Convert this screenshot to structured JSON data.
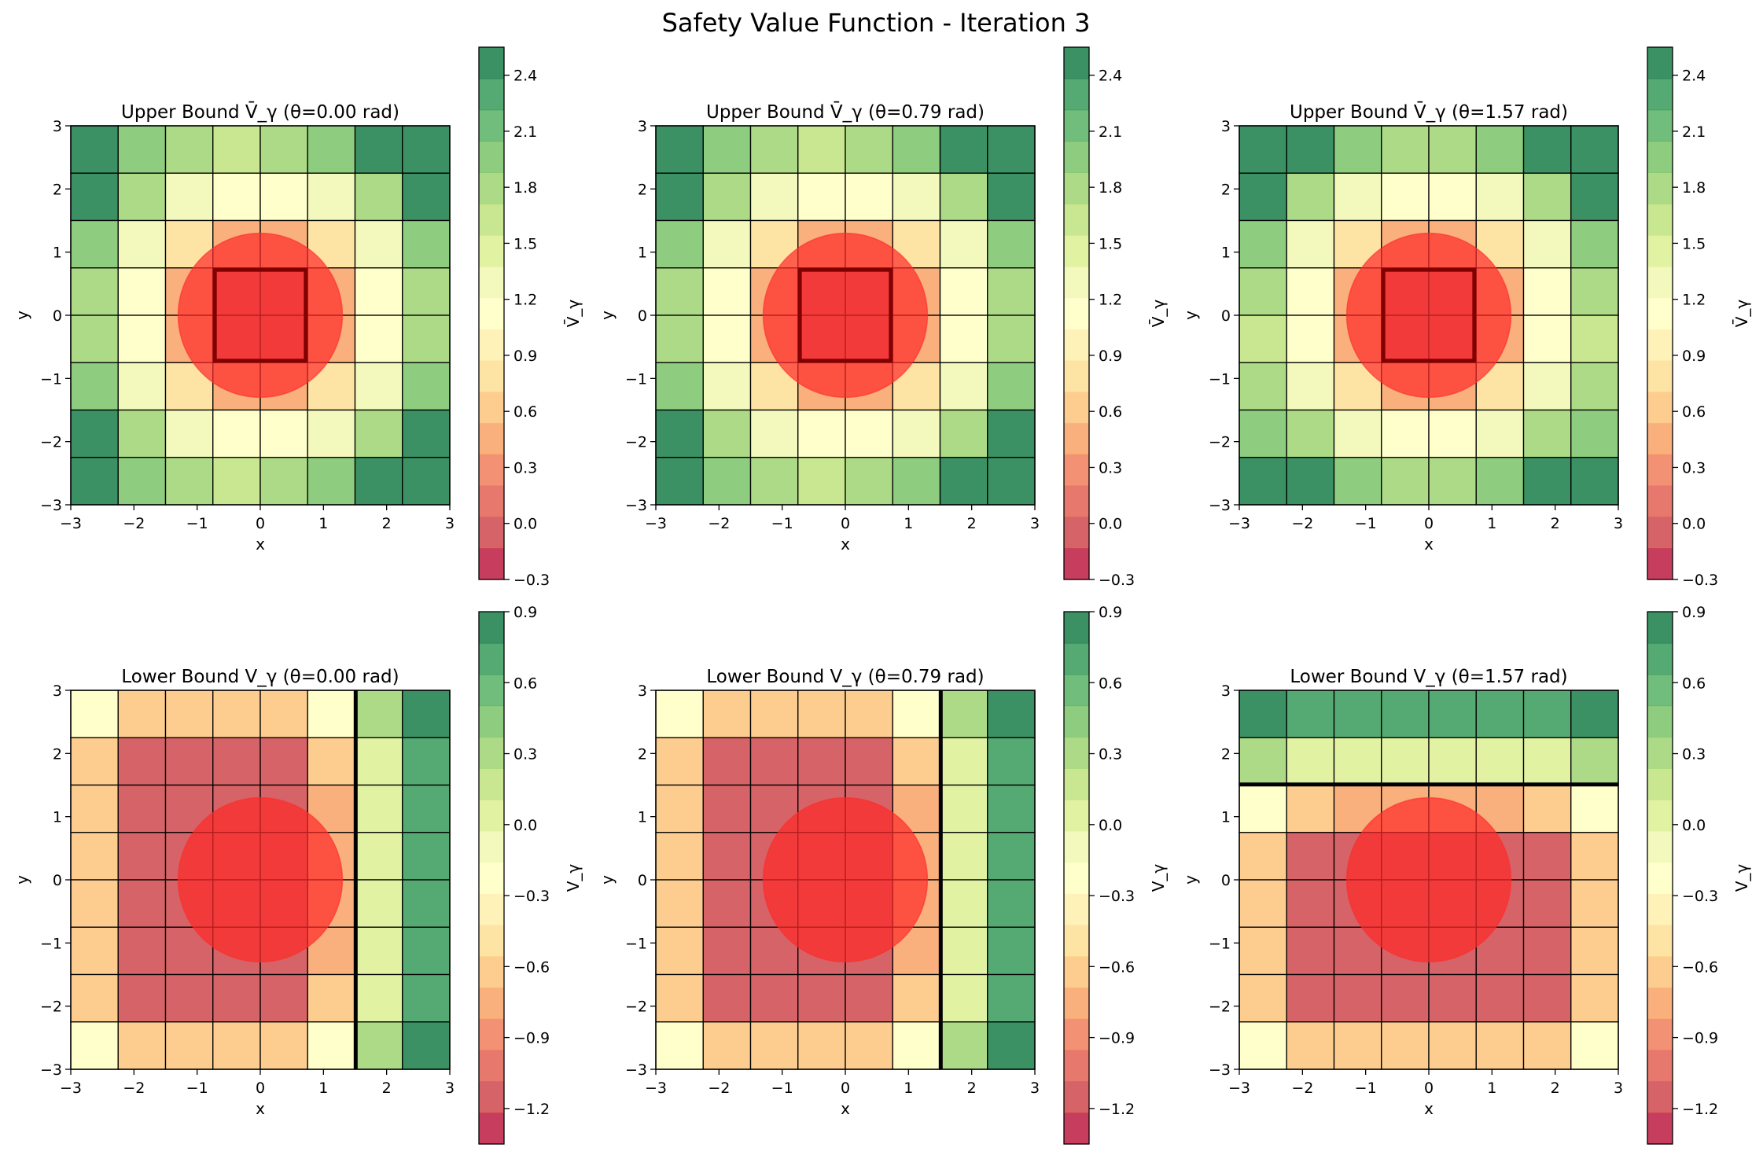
{
  "figure": {
    "title": "Safety Value Function - Iteration 3"
  },
  "colors": {
    "palette": [
      "#b90c36",
      "#cc3c41",
      "#e1564a",
      "#ef7650",
      "#f89c5b",
      "#fdc074",
      "#fedd8d",
      "#feefa7",
      "#ffffbf",
      "#f0f8ad",
      "#d9ef8b",
      "#bbe176",
      "#99d168",
      "#72c05f",
      "#4dad5b",
      "#2b944f",
      "#0a763c"
    ],
    "obstacle": "#ff2a2a",
    "upper_boundary": "#800000",
    "lower_boundary": "#000000"
  },
  "chart_data": [
    {
      "type": "heatmap",
      "title": "Upper Bound V̄_γ (θ=0.00 rad)",
      "xlabel": "x",
      "ylabel": "y",
      "colorbar_label": "V̄_γ",
      "xlim": [
        -3,
        3
      ],
      "ylim": [
        -3,
        3
      ],
      "x_ticks": [
        "−3",
        "−2",
        "−1",
        "0",
        "1",
        "2",
        "3"
      ],
      "y_ticks": [
        "−3",
        "−2",
        "−1",
        "0",
        "1",
        "2",
        "3"
      ],
      "clim": [
        -0.3,
        2.55
      ],
      "colorbar_ticks": [
        "−0.3",
        "0.0",
        "0.3",
        "0.6",
        "0.9",
        "1.2",
        "1.5",
        "1.8",
        "2.1",
        "2.4"
      ],
      "grid_rows_top_to_bottom": [
        [
          2.5,
          2.0,
          1.75,
          1.65,
          1.75,
          2.0,
          2.5,
          2.5
        ],
        [
          2.5,
          1.75,
          1.35,
          1.15,
          1.15,
          1.35,
          1.75,
          2.5
        ],
        [
          2.0,
          1.35,
          0.85,
          0.45,
          0.45,
          0.85,
          1.35,
          2.0
        ],
        [
          1.75,
          1.15,
          0.45,
          0.0,
          0.0,
          0.45,
          1.15,
          1.75
        ],
        [
          1.75,
          1.15,
          0.45,
          0.0,
          0.0,
          0.45,
          1.15,
          1.75
        ],
        [
          2.0,
          1.35,
          0.85,
          0.45,
          0.45,
          0.85,
          1.35,
          2.0
        ],
        [
          2.5,
          1.75,
          1.35,
          1.15,
          1.15,
          1.35,
          1.75,
          2.5
        ],
        [
          2.5,
          2.0,
          1.75,
          1.65,
          1.75,
          2.0,
          2.5,
          2.5
        ]
      ],
      "obstacle": {
        "cx": 0,
        "cy": 0,
        "r": 1.3
      },
      "boundary": {
        "kind": "rect",
        "x0": -0.72,
        "x1": 0.72,
        "y0": -0.72,
        "y1": 0.72
      }
    },
    {
      "type": "heatmap",
      "title": "Upper Bound V̄_γ (θ=0.79 rad)",
      "xlabel": "x",
      "ylabel": "y",
      "colorbar_label": "V̄_γ",
      "xlim": [
        -3,
        3
      ],
      "ylim": [
        -3,
        3
      ],
      "x_ticks": [
        "−3",
        "−2",
        "−1",
        "0",
        "1",
        "2",
        "3"
      ],
      "y_ticks": [
        "−3",
        "−2",
        "−1",
        "0",
        "1",
        "2",
        "3"
      ],
      "clim": [
        -0.3,
        2.55
      ],
      "colorbar_ticks": [
        "−0.3",
        "0.0",
        "0.3",
        "0.6",
        "0.9",
        "1.2",
        "1.5",
        "1.8",
        "2.1",
        "2.4"
      ],
      "grid_rows_top_to_bottom": [
        [
          2.5,
          2.0,
          1.75,
          1.65,
          1.75,
          2.0,
          2.5,
          2.5
        ],
        [
          2.5,
          1.75,
          1.35,
          1.15,
          1.15,
          1.35,
          1.75,
          2.5
        ],
        [
          2.0,
          1.35,
          0.85,
          0.45,
          0.45,
          0.85,
          1.35,
          2.0
        ],
        [
          1.75,
          1.15,
          0.45,
          0.0,
          0.0,
          0.45,
          1.15,
          1.75
        ],
        [
          1.75,
          1.15,
          0.45,
          0.0,
          0.0,
          0.45,
          1.15,
          1.75
        ],
        [
          2.0,
          1.35,
          0.85,
          0.45,
          0.45,
          0.85,
          1.35,
          2.0
        ],
        [
          2.5,
          1.75,
          1.35,
          1.15,
          1.15,
          1.35,
          1.75,
          2.5
        ],
        [
          2.5,
          2.0,
          1.75,
          1.65,
          1.75,
          2.0,
          2.5,
          2.5
        ]
      ],
      "obstacle": {
        "cx": 0,
        "cy": 0,
        "r": 1.3
      },
      "boundary": {
        "kind": "rect",
        "x0": -0.72,
        "x1": 0.72,
        "y0": -0.72,
        "y1": 0.72
      }
    },
    {
      "type": "heatmap",
      "title": "Upper Bound V̄_γ (θ=1.57 rad)",
      "xlabel": "x",
      "ylabel": "y",
      "colorbar_label": "V̄_γ",
      "xlim": [
        -3,
        3
      ],
      "ylim": [
        -3,
        3
      ],
      "x_ticks": [
        "−3",
        "−2",
        "−1",
        "0",
        "1",
        "2",
        "3"
      ],
      "y_ticks": [
        "−3",
        "−2",
        "−1",
        "0",
        "1",
        "2",
        "3"
      ],
      "clim": [
        -0.3,
        2.55
      ],
      "colorbar_ticks": [
        "−0.3",
        "0.0",
        "0.3",
        "0.6",
        "0.9",
        "1.2",
        "1.5",
        "1.8",
        "2.1",
        "2.4"
      ],
      "grid_rows_top_to_bottom": [
        [
          2.5,
          2.5,
          2.0,
          1.75,
          1.75,
          2.0,
          2.5,
          2.5
        ],
        [
          2.5,
          1.75,
          1.35,
          1.15,
          1.15,
          1.35,
          1.75,
          2.5
        ],
        [
          2.0,
          1.35,
          0.85,
          0.45,
          0.45,
          0.85,
          1.35,
          2.0
        ],
        [
          1.75,
          1.15,
          0.45,
          0.0,
          0.0,
          0.45,
          1.15,
          1.75
        ],
        [
          1.65,
          1.15,
          0.45,
          0.0,
          0.0,
          0.45,
          1.15,
          1.65
        ],
        [
          1.75,
          1.35,
          0.85,
          0.45,
          0.45,
          0.85,
          1.35,
          1.75
        ],
        [
          2.0,
          1.75,
          1.35,
          1.15,
          1.15,
          1.35,
          1.75,
          2.0
        ],
        [
          2.5,
          2.5,
          2.0,
          1.75,
          1.75,
          2.0,
          2.5,
          2.5
        ]
      ],
      "obstacle": {
        "cx": 0,
        "cy": 0,
        "r": 1.3
      },
      "boundary": {
        "kind": "rect",
        "x0": -0.72,
        "x1": 0.72,
        "y0": -0.72,
        "y1": 0.72
      }
    },
    {
      "type": "heatmap",
      "title": "Lower Bound V_γ (θ=0.00 rad)",
      "xlabel": "x",
      "ylabel": "y",
      "colorbar_label": "V_γ",
      "xlim": [
        -3,
        3
      ],
      "ylim": [
        -3,
        3
      ],
      "x_ticks": [
        "−3",
        "−2",
        "−1",
        "0",
        "1",
        "2",
        "3"
      ],
      "y_ticks": [
        "−3",
        "−2",
        "−1",
        "0",
        "1",
        "2",
        "3"
      ],
      "clim": [
        -1.35,
        0.9
      ],
      "colorbar_ticks": [
        "−1.2",
        "−0.9",
        "−0.6",
        "−0.3",
        "0.0",
        "0.3",
        "0.6",
        "0.9"
      ],
      "grid_rows_top_to_bottom": [
        [
          -0.2,
          -0.6,
          -0.6,
          -0.6,
          -0.6,
          -0.2,
          0.3,
          0.85
        ],
        [
          -0.6,
          -1.1,
          -1.1,
          -1.1,
          -1.1,
          -0.6,
          0.1,
          0.65
        ],
        [
          -0.6,
          -1.1,
          -1.1,
          -1.1,
          -1.1,
          -0.7,
          0.1,
          0.65
        ],
        [
          -0.6,
          -1.1,
          -1.1,
          -1.1,
          -1.1,
          -0.7,
          0.1,
          0.65
        ],
        [
          -0.6,
          -1.1,
          -1.1,
          -1.1,
          -1.1,
          -0.7,
          0.1,
          0.65
        ],
        [
          -0.6,
          -1.1,
          -1.1,
          -1.1,
          -1.1,
          -0.7,
          0.1,
          0.65
        ],
        [
          -0.6,
          -1.1,
          -1.1,
          -1.1,
          -1.1,
          -0.6,
          0.1,
          0.65
        ],
        [
          -0.2,
          -0.6,
          -0.6,
          -0.6,
          -0.6,
          -0.2,
          0.3,
          0.85
        ]
      ],
      "obstacle": {
        "cx": 0,
        "cy": 0,
        "r": 1.3
      },
      "boundary": {
        "kind": "vline",
        "x": 1.51
      }
    },
    {
      "type": "heatmap",
      "title": "Lower Bound V_γ (θ=0.79 rad)",
      "xlabel": "x",
      "ylabel": "y",
      "colorbar_label": "V_γ",
      "xlim": [
        -3,
        3
      ],
      "ylim": [
        -3,
        3
      ],
      "x_ticks": [
        "−3",
        "−2",
        "−1",
        "0",
        "1",
        "2",
        "3"
      ],
      "y_ticks": [
        "−3",
        "−2",
        "−1",
        "0",
        "1",
        "2",
        "3"
      ],
      "clim": [
        -1.35,
        0.9
      ],
      "colorbar_ticks": [
        "−1.2",
        "−0.9",
        "−0.6",
        "−0.3",
        "0.0",
        "0.3",
        "0.6",
        "0.9"
      ],
      "grid_rows_top_to_bottom": [
        [
          -0.2,
          -0.6,
          -0.6,
          -0.6,
          -0.6,
          -0.2,
          0.3,
          0.85
        ],
        [
          -0.6,
          -1.1,
          -1.1,
          -1.1,
          -1.1,
          -0.6,
          0.1,
          0.65
        ],
        [
          -0.6,
          -1.1,
          -1.1,
          -1.1,
          -1.1,
          -0.7,
          0.1,
          0.65
        ],
        [
          -0.6,
          -1.1,
          -1.1,
          -1.1,
          -1.1,
          -0.7,
          0.1,
          0.65
        ],
        [
          -0.6,
          -1.1,
          -1.1,
          -1.1,
          -1.1,
          -0.7,
          0.1,
          0.65
        ],
        [
          -0.6,
          -1.1,
          -1.1,
          -1.1,
          -1.1,
          -0.7,
          0.1,
          0.65
        ],
        [
          -0.6,
          -1.1,
          -1.1,
          -1.1,
          -1.1,
          -0.6,
          0.1,
          0.65
        ],
        [
          -0.2,
          -0.6,
          -0.6,
          -0.6,
          -0.6,
          -0.2,
          0.3,
          0.85
        ]
      ],
      "obstacle": {
        "cx": 0,
        "cy": 0,
        "r": 1.3
      },
      "boundary": {
        "kind": "vline",
        "x": 1.51
      }
    },
    {
      "type": "heatmap",
      "title": "Lower Bound V_γ (θ=1.57 rad)",
      "xlabel": "x",
      "ylabel": "y",
      "colorbar_label": "V_γ",
      "xlim": [
        -3,
        3
      ],
      "ylim": [
        -3,
        3
      ],
      "x_ticks": [
        "−3",
        "−2",
        "−1",
        "0",
        "1",
        "2",
        "3"
      ],
      "y_ticks": [
        "−3",
        "−2",
        "−1",
        "0",
        "1",
        "2",
        "3"
      ],
      "clim": [
        -1.35,
        0.9
      ],
      "colorbar_ticks": [
        "−1.2",
        "−0.9",
        "−0.6",
        "−0.3",
        "0.0",
        "0.3",
        "0.6",
        "0.9"
      ],
      "grid_rows_top_to_bottom": [
        [
          0.85,
          0.65,
          0.65,
          0.65,
          0.65,
          0.65,
          0.65,
          0.85
        ],
        [
          0.3,
          0.1,
          0.1,
          0.1,
          0.1,
          0.1,
          0.1,
          0.3
        ],
        [
          -0.2,
          -0.6,
          -0.7,
          -0.7,
          -0.7,
          -0.7,
          -0.6,
          -0.2
        ],
        [
          -0.6,
          -1.1,
          -1.1,
          -1.1,
          -1.1,
          -1.1,
          -1.1,
          -0.6
        ],
        [
          -0.6,
          -1.1,
          -1.1,
          -1.1,
          -1.1,
          -1.1,
          -1.1,
          -0.6
        ],
        [
          -0.6,
          -1.1,
          -1.1,
          -1.1,
          -1.1,
          -1.1,
          -1.1,
          -0.6
        ],
        [
          -0.6,
          -1.1,
          -1.1,
          -1.1,
          -1.1,
          -1.1,
          -1.1,
          -0.6
        ],
        [
          -0.2,
          -0.6,
          -0.6,
          -0.6,
          -0.6,
          -0.6,
          -0.6,
          -0.2
        ]
      ],
      "obstacle": {
        "cx": 0,
        "cy": 0,
        "r": 1.3
      },
      "boundary": {
        "kind": "hline",
        "y": 1.51
      }
    }
  ]
}
